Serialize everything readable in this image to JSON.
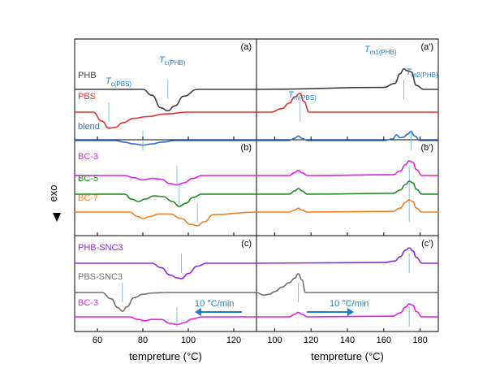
{
  "figure": {
    "y_axis_label": "exo",
    "x_axis_label_left": "tempreture (°C)",
    "x_axis_label_right": "tempreture (°C)"
  },
  "chart_data": [
    {
      "type": "line",
      "panel": "(a)",
      "section": "cooling",
      "xlim": [
        50,
        130
      ],
      "xticks": [
        60,
        80,
        100,
        120
      ],
      "x_tick_labels_shown": false,
      "series": [
        {
          "name": "PHB",
          "color": "#404040",
          "x": [
            50,
            80,
            84,
            88,
            91,
            94,
            98,
            104,
            130
          ],
          "y": [
            0,
            0,
            -0.3,
            -0.95,
            -1.1,
            -0.85,
            -0.35,
            0,
            0
          ]
        },
        {
          "name": "PBS",
          "color": "#e03030",
          "x": [
            50,
            58,
            62,
            65,
            68,
            71,
            76,
            82,
            90,
            100,
            130
          ],
          "y": [
            0,
            0,
            -0.5,
            -0.9,
            -0.85,
            -0.6,
            -0.35,
            -0.25,
            -0.1,
            0,
            0
          ]
        },
        {
          "name": "blend",
          "color": "#2a6fd0",
          "x": [
            50,
            68,
            72,
            76,
            80,
            84,
            88,
            94,
            130
          ],
          "y": [
            0,
            0,
            -0.15,
            -0.3,
            -0.4,
            -0.3,
            -0.15,
            0,
            0
          ]
        }
      ],
      "annotations": [
        "T_c(PHB)",
        "T_c(PBS)"
      ]
    },
    {
      "type": "line",
      "panel": "(a')",
      "section": "heating",
      "xlim": [
        90,
        190
      ],
      "xticks": [
        100,
        120,
        140,
        160,
        180
      ],
      "x_tick_labels_shown": false,
      "series": [
        {
          "name": "PHB",
          "color": "#404040",
          "x": [
            90,
            160,
            166,
            169,
            171,
            173,
            175,
            178,
            182,
            190
          ],
          "y": [
            0,
            0.1,
            0.3,
            0.8,
            1.05,
            0.95,
            0.9,
            0.2,
            0,
            0
          ]
        },
        {
          "name": "PBS",
          "color": "#e03030",
          "x": [
            90,
            98,
            104,
            108,
            111,
            114,
            116,
            119,
            190
          ],
          "y": [
            0,
            0,
            0.2,
            0.5,
            0.85,
            1.05,
            0.6,
            0,
            0
          ]
        },
        {
          "name": "blend",
          "color": "#2a6fd0",
          "x": [
            90,
            108,
            111,
            113,
            115,
            118,
            160,
            165,
            167,
            169,
            171,
            173,
            175,
            177,
            180,
            190
          ],
          "y": [
            0,
            0,
            0.2,
            0.4,
            0.2,
            0,
            0,
            0.15,
            0.5,
            0.25,
            0.3,
            0.55,
            0.8,
            0.4,
            0,
            0
          ]
        }
      ],
      "annotations": [
        "T_m1(PHB)",
        "T_m2(PHB)",
        "T_m(PBS)"
      ]
    },
    {
      "type": "line",
      "panel": "(b)",
      "section": "cooling",
      "xlim": [
        50,
        130
      ],
      "xticks": [
        60,
        80,
        100,
        120
      ],
      "x_tick_labels_shown": false,
      "series": [
        {
          "name": "BC-3",
          "color": "#e020e0",
          "x": [
            50,
            72,
            76,
            80,
            84,
            88,
            92,
            95,
            98,
            102,
            106,
            130
          ],
          "y": [
            0,
            0,
            -0.15,
            -0.3,
            -0.2,
            -0.25,
            -0.55,
            -0.65,
            -0.5,
            -0.2,
            0,
            0
          ]
        },
        {
          "name": "BC-5",
          "color": "#1a8a1a",
          "x": [
            50,
            72,
            75,
            78,
            81,
            85,
            89,
            93,
            96,
            99,
            102,
            106,
            130
          ],
          "y": [
            0,
            0,
            -0.3,
            -0.45,
            -0.3,
            -0.1,
            -0.15,
            -0.45,
            -0.75,
            -0.55,
            -0.2,
            0,
            0
          ]
        },
        {
          "name": "BC-7",
          "color": "#f08020",
          "x": [
            50,
            74,
            78,
            80,
            83,
            87,
            92,
            97,
            101,
            104,
            107,
            111,
            130
          ],
          "y": [
            0,
            0,
            -0.35,
            -0.5,
            -0.35,
            -0.15,
            -0.15,
            -0.5,
            -0.95,
            -1.05,
            -0.75,
            -0.2,
            0
          ]
        }
      ]
    },
    {
      "type": "line",
      "panel": "(b')",
      "section": "heating",
      "xlim": [
        90,
        190
      ],
      "xticks": [
        100,
        120,
        140,
        160,
        180
      ],
      "x_tick_labels_shown": false,
      "series": [
        {
          "name": "BC-3",
          "color": "#e020e0",
          "x": [
            90,
            108,
            111,
            113,
            115,
            118,
            165,
            169,
            172,
            174,
            176,
            178,
            181,
            190
          ],
          "y": [
            0,
            0,
            0.2,
            0.35,
            0.2,
            0,
            0.05,
            0.3,
            0.75,
            1.0,
            0.9,
            0.4,
            0,
            0
          ]
        },
        {
          "name": "BC-5",
          "color": "#1a8a1a",
          "x": [
            90,
            108,
            111,
            113,
            115,
            118,
            165,
            169,
            172,
            174,
            176,
            178,
            181,
            190
          ],
          "y": [
            0,
            0,
            0.2,
            0.35,
            0.2,
            0,
            0.05,
            0.25,
            0.6,
            0.8,
            0.7,
            0.3,
            0,
            0
          ]
        },
        {
          "name": "BC-7",
          "color": "#f08020",
          "x": [
            90,
            108,
            111,
            113,
            115,
            118,
            165,
            169,
            172,
            174,
            176,
            178,
            181,
            190
          ],
          "y": [
            0,
            0,
            0.15,
            0.3,
            0.15,
            0,
            0.05,
            0.3,
            0.75,
            0.95,
            0.8,
            0.3,
            0,
            0
          ]
        }
      ]
    },
    {
      "type": "line",
      "panel": "(c)",
      "section": "cooling",
      "xlim": [
        50,
        130
      ],
      "xticks": [
        60,
        80,
        100,
        120
      ],
      "series": [
        {
          "name": "PHB-SNC3",
          "color": "#8a2be2",
          "x": [
            50,
            84,
            88,
            92,
            95,
            97,
            100,
            104,
            108,
            130
          ],
          "y": [
            0,
            0,
            -0.3,
            -0.8,
            -1.0,
            -1.05,
            -0.7,
            -0.2,
            0,
            0
          ]
        },
        {
          "name": "PBS-SNC3",
          "color": "#707070",
          "x": [
            50,
            62,
            66,
            69,
            71,
            73,
            76,
            80,
            84,
            90,
            100,
            130
          ],
          "y": [
            0,
            0,
            -0.35,
            -0.85,
            -1.05,
            -0.8,
            -0.3,
            -0.1,
            -0.03,
            0,
            0,
            0
          ]
        },
        {
          "name": "BC-3",
          "color": "#e020e0",
          "x": [
            50,
            74,
            78,
            81,
            84,
            88,
            92,
            95,
            98,
            102,
            106,
            130
          ],
          "y": [
            0,
            0,
            -0.2,
            -0.3,
            -0.2,
            -0.2,
            -0.5,
            -0.6,
            -0.45,
            -0.15,
            0,
            0
          ]
        }
      ],
      "annotation": "10 °C/min"
    },
    {
      "type": "line",
      "panel": "(c')",
      "section": "heating",
      "xlim": [
        90,
        190
      ],
      "xticks": [
        100,
        120,
        140,
        160,
        180
      ],
      "series": [
        {
          "name": "PHB-SNC3",
          "color": "#8a2be2",
          "x": [
            90,
            160,
            166,
            169,
            172,
            174,
            176,
            178,
            181,
            190
          ],
          "y": [
            0,
            0.05,
            0.15,
            0.45,
            0.9,
            1.05,
            0.85,
            0.4,
            0,
            0
          ]
        },
        {
          "name": "PBS-SNC3",
          "color": "#707070",
          "x": [
            90,
            94,
            97,
            100,
            104,
            108,
            111,
            113,
            115,
            117,
            190
          ],
          "y": [
            0,
            -0.15,
            -0.1,
            0.05,
            0.3,
            0.55,
            0.8,
            1.05,
            0.7,
            0,
            0
          ]
        },
        {
          "name": "BC-3",
          "color": "#e020e0",
          "x": [
            90,
            108,
            111,
            113,
            115,
            118,
            165,
            169,
            172,
            174,
            176,
            178,
            181,
            190
          ],
          "y": [
            0,
            0,
            0.2,
            0.35,
            0.2,
            0,
            0.05,
            0.3,
            0.75,
            1.0,
            0.9,
            0.4,
            0,
            0
          ]
        }
      ],
      "annotation": "10 °C/min"
    }
  ]
}
